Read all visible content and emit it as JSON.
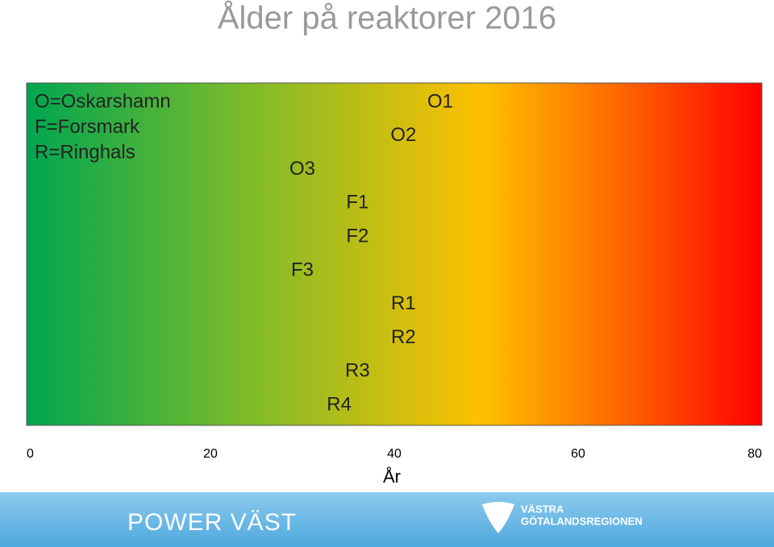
{
  "chart_data": {
    "type": "scatter",
    "title": "Ålder på reaktorer 2016",
    "legend_notes": [
      "O=Oskarshamn",
      "F=Forsmark",
      "R=Ringhals"
    ],
    "categories": [
      "O1",
      "O2",
      "O3",
      "F1",
      "F2",
      "F3",
      "R1",
      "R2",
      "R3",
      "R4"
    ],
    "values": [
      45,
      41,
      30,
      36,
      36,
      30,
      41,
      41,
      36,
      34
    ],
    "x_label": "År",
    "xlim": [
      0,
      80
    ],
    "xticks": [
      0,
      20,
      40,
      60,
      80
    ]
  },
  "footer": {
    "brand": "POWER VÄST",
    "region_line1": "VÄSTRA",
    "region_line2": "GÖTALANDSREGIONEN"
  }
}
